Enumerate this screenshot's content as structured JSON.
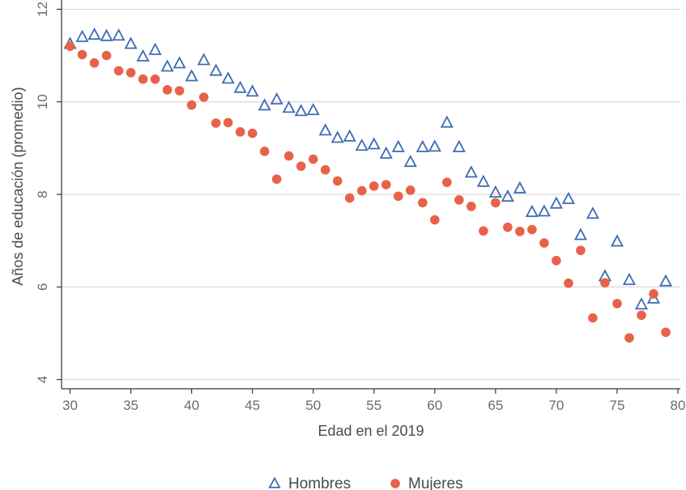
{
  "chart_data": {
    "type": "scatter",
    "xlabel": "Edad en el 2019",
    "ylabel": "Años de educación (promedio)",
    "xlim": [
      29.3,
      80.2
    ],
    "ylim": [
      3.8,
      12.2
    ],
    "xticks": [
      30,
      35,
      40,
      45,
      50,
      55,
      60,
      65,
      70,
      75,
      80
    ],
    "yticks": [
      4,
      6,
      8,
      10,
      12
    ],
    "grid": "horizontal",
    "legend_position": "bottom",
    "series": [
      {
        "name": "Hombres",
        "marker": "triangle-open",
        "color": "#3b6cb4",
        "x": [
          30,
          31,
          32,
          33,
          34,
          35,
          36,
          37,
          38,
          39,
          40,
          41,
          42,
          43,
          44,
          45,
          46,
          47,
          48,
          49,
          50,
          51,
          52,
          53,
          54,
          55,
          56,
          57,
          58,
          59,
          60,
          61,
          62,
          63,
          64,
          65,
          66,
          67,
          68,
          69,
          70,
          71,
          72,
          73,
          74,
          75,
          76,
          77,
          78,
          79
        ],
        "y": [
          11.25,
          11.4,
          11.45,
          11.42,
          11.43,
          11.25,
          10.98,
          11.12,
          10.76,
          10.83,
          10.55,
          10.9,
          10.67,
          10.5,
          10.3,
          10.22,
          9.92,
          10.05,
          9.87,
          9.8,
          9.82,
          9.38,
          9.22,
          9.25,
          9.05,
          9.08,
          8.88,
          9.02,
          8.7,
          9.02,
          9.03,
          9.55,
          9.02,
          8.47,
          8.27,
          8.04,
          7.95,
          8.13,
          7.62,
          7.63,
          7.8,
          7.9,
          7.12,
          7.58,
          6.23,
          6.98,
          6.15,
          5.62,
          5.75,
          6.12
        ]
      },
      {
        "name": "Mujeres",
        "marker": "circle-filled",
        "color": "#e8624a",
        "x": [
          30,
          31,
          32,
          33,
          34,
          35,
          36,
          37,
          38,
          39,
          40,
          41,
          42,
          43,
          44,
          45,
          46,
          47,
          48,
          49,
          50,
          51,
          52,
          53,
          54,
          55,
          56,
          57,
          58,
          59,
          60,
          61,
          62,
          63,
          64,
          65,
          66,
          67,
          68,
          69,
          70,
          71,
          72,
          73,
          74,
          75,
          76,
          77,
          78,
          79
        ],
        "y": [
          11.2,
          11.02,
          10.84,
          11.0,
          10.67,
          10.63,
          10.49,
          10.49,
          10.26,
          10.24,
          9.93,
          10.1,
          9.54,
          9.55,
          9.35,
          9.32,
          8.93,
          8.33,
          8.83,
          8.61,
          8.76,
          8.53,
          8.29,
          7.92,
          8.08,
          8.18,
          8.21,
          7.96,
          8.09,
          7.82,
          7.45,
          8.26,
          7.88,
          7.74,
          7.21,
          7.82,
          7.29,
          7.2,
          7.24,
          6.95,
          6.57,
          6.08,
          6.79,
          5.33,
          6.09,
          5.64,
          4.9,
          5.39,
          5.85,
          5.02
        ]
      }
    ]
  },
  "colors": {
    "hombres": "#3b6cb4",
    "mujeres": "#e8624a",
    "grid": "#d9d9d9",
    "axis": "#333333"
  }
}
